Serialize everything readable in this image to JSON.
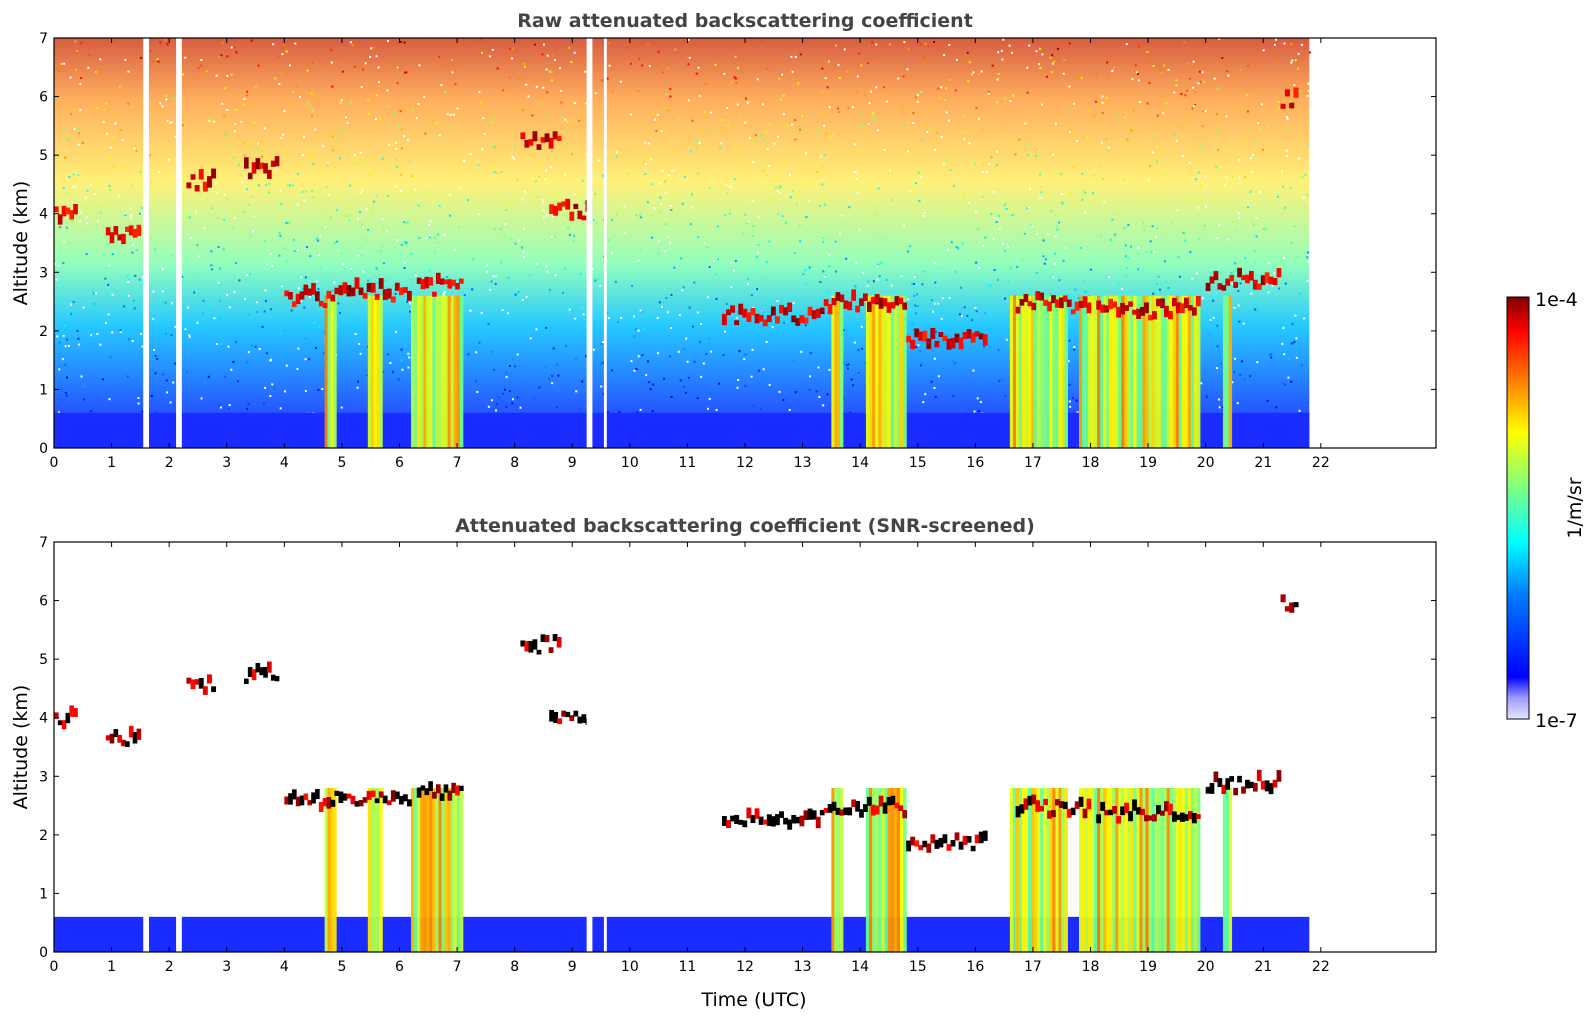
{
  "chart_data": [
    {
      "type": "heatmap",
      "title": "Raw attenuated backscattering coefficient",
      "xlabel": "",
      "ylabel": "Altitude (km)",
      "xlim": [
        0,
        24
      ],
      "ylim": [
        0,
        7
      ],
      "x_ticks": [
        "0",
        "1",
        "2",
        "3",
        "4",
        "5",
        "6",
        "7",
        "8",
        "9",
        "10",
        "11",
        "12",
        "13",
        "14",
        "15",
        "16",
        "17",
        "18",
        "19",
        "20",
        "21",
        "22"
      ],
      "y_ticks": [
        "0",
        "1",
        "2",
        "3",
        "4",
        "5",
        "6",
        "7"
      ],
      "data_extent_hours": [
        0,
        21.8
      ],
      "missing_data_hours": [
        [
          1.55,
          1.65
        ],
        [
          2.12,
          2.22
        ],
        [
          9.25,
          9.35
        ],
        [
          9.55,
          9.6
        ]
      ],
      "cloud_layers": [
        {
          "start": 0.0,
          "end": 0.4,
          "altitude_km": 3.9
        },
        {
          "start": 0.9,
          "end": 1.5,
          "altitude_km": 3.6
        },
        {
          "start": 2.3,
          "end": 2.8,
          "altitude_km": 4.5
        },
        {
          "start": 3.3,
          "end": 3.9,
          "altitude_km": 4.7
        },
        {
          "start": 4.0,
          "end": 4.8,
          "altitude_km": 2.5
        },
        {
          "start": 4.8,
          "end": 6.2,
          "altitude_km": 2.6
        },
        {
          "start": 6.3,
          "end": 7.1,
          "altitude_km": 2.7
        },
        {
          "start": 8.1,
          "end": 8.8,
          "altitude_km": 5.2
        },
        {
          "start": 8.6,
          "end": 9.3,
          "altitude_km": 4.0
        },
        {
          "start": 11.6,
          "end": 13.3,
          "altitude_km": 2.2
        },
        {
          "start": 13.3,
          "end": 14.8,
          "altitude_km": 2.4
        },
        {
          "start": 14.8,
          "end": 16.2,
          "altitude_km": 1.8
        },
        {
          "start": 16.7,
          "end": 18.0,
          "altitude_km": 2.4
        },
        {
          "start": 18.1,
          "end": 19.9,
          "altitude_km": 2.3
        },
        {
          "start": 20.0,
          "end": 21.3,
          "altitude_km": 2.8
        },
        {
          "start": 21.3,
          "end": 21.6,
          "altitude_km": 5.9
        }
      ],
      "precipitation_shafts_hours": [
        [
          4.7,
          4.9
        ],
        [
          5.45,
          5.7
        ],
        [
          6.2,
          7.1
        ],
        [
          13.5,
          13.7
        ],
        [
          14.1,
          14.8
        ],
        [
          16.6,
          17.6
        ],
        [
          17.8,
          19.9
        ],
        [
          20.3,
          20.45
        ]
      ]
    },
    {
      "type": "heatmap",
      "title": "Attenuated backscattering coefficient (SNR-screened)",
      "xlabel": "Time (UTC)",
      "ylabel": "Altitude (km)",
      "xlim": [
        0,
        24
      ],
      "ylim": [
        0,
        7
      ],
      "x_ticks": [
        "0",
        "1",
        "2",
        "3",
        "4",
        "5",
        "6",
        "7",
        "8",
        "9",
        "10",
        "11",
        "12",
        "13",
        "14",
        "15",
        "16",
        "17",
        "18",
        "19",
        "20",
        "21",
        "22"
      ],
      "y_ticks": [
        "0",
        "1",
        "2",
        "3",
        "4",
        "5",
        "6",
        "7"
      ],
      "boundary_layer_top_km": 0.6
    }
  ],
  "colorbar": {
    "label": "1/m/sr",
    "max_label": "1e-4",
    "min_label": "1e-7",
    "scale": "log",
    "colormap": [
      "#7f0000",
      "#ff0000",
      "#ff8000",
      "#ffff00",
      "#80ff80",
      "#00ffff",
      "#0080ff",
      "#0000ff",
      "#e6e6ff"
    ]
  }
}
